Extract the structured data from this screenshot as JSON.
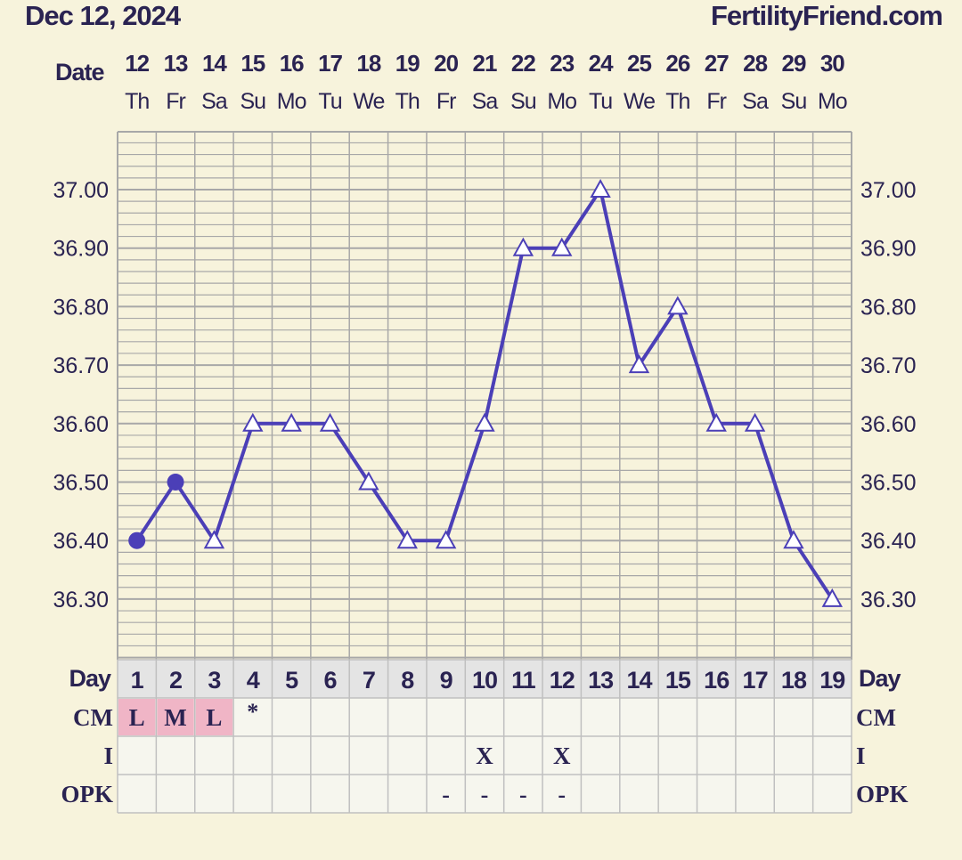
{
  "header": {
    "start_date": "Dec 12, 2024",
    "brand": "FertilityFriend.com"
  },
  "chart_data": {
    "type": "line",
    "title": "",
    "date_row_label": "Date",
    "day_row_label": "Day",
    "dates": [
      "12",
      "13",
      "14",
      "15",
      "16",
      "17",
      "18",
      "19",
      "20",
      "21",
      "22",
      "23",
      "24",
      "25",
      "26",
      "27",
      "28",
      "29",
      "30"
    ],
    "weekdays": [
      "Th",
      "Fr",
      "Sa",
      "Su",
      "Mo",
      "Tu",
      "We",
      "Th",
      "Fr",
      "Sa",
      "Su",
      "Mo",
      "Tu",
      "We",
      "Th",
      "Fr",
      "Sa",
      "Su",
      "Mo"
    ],
    "days": [
      "1",
      "2",
      "3",
      "4",
      "5",
      "6",
      "7",
      "8",
      "9",
      "10",
      "11",
      "12",
      "13",
      "14",
      "15",
      "16",
      "17",
      "18",
      "19"
    ],
    "y_ticks": [
      "37.00",
      "36.90",
      "36.80",
      "36.70",
      "36.60",
      "36.50",
      "36.40",
      "36.30"
    ],
    "ylim": [
      36.2,
      37.1
    ],
    "series": [
      {
        "values": [
          36.4,
          36.5,
          36.4,
          36.6,
          36.6,
          36.6,
          36.5,
          36.4,
          36.4,
          36.6,
          36.9,
          36.9,
          37.0,
          36.7,
          36.8,
          36.6,
          36.6,
          36.4,
          36.3
        ],
        "markers": [
          "dot",
          "dot",
          "triangle",
          "triangle",
          "triangle",
          "triangle",
          "triangle",
          "triangle",
          "triangle",
          "triangle",
          "triangle",
          "triangle",
          "triangle",
          "triangle",
          "triangle",
          "triangle",
          "triangle",
          "triangle",
          "triangle"
        ]
      }
    ],
    "rows": [
      {
        "label": "CM",
        "cells": [
          "L",
          "M",
          "L",
          "*",
          "",
          "",
          "",
          "",
          "",
          "",
          "",
          "",
          "",
          "",
          "",
          "",
          "",
          "",
          ""
        ]
      },
      {
        "label": "I",
        "cells": [
          "",
          "",
          "",
          "",
          "",
          "",
          "",
          "",
          "",
          "X",
          "",
          "X",
          "",
          "",
          "",
          "",
          "",
          "",
          ""
        ]
      },
      {
        "label": "OPK",
        "cells": [
          "",
          "",
          "",
          "",
          "",
          "",
          "",
          "",
          "-",
          "-",
          "-",
          "-",
          "",
          "",
          "",
          "",
          "",
          "",
          ""
        ]
      }
    ],
    "grid": true,
    "colors": {
      "background": "#f7f3dc",
      "line": "#4b3fb7",
      "grid": "#a8a8a8",
      "highlight": "#f0b5c6",
      "text": "#2a2352",
      "day_row": "#e4e4e4",
      "table_cell": "#f6f6ee"
    }
  }
}
